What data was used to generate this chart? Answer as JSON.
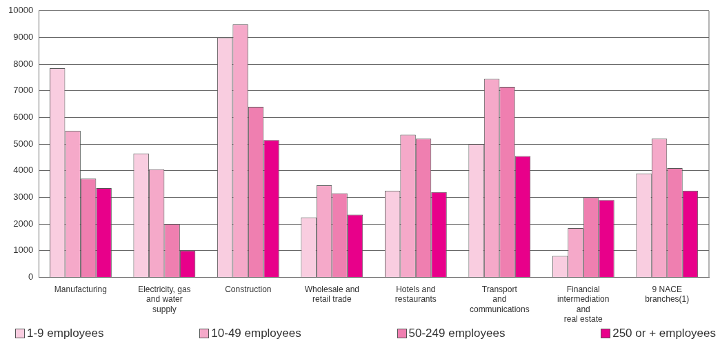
{
  "chart_data": {
    "type": "bar",
    "categories": [
      "Manufacturing",
      "Electricity, gas\nand water\nsupply",
      "Construction",
      "Wholesale and\nretail trade",
      "Hotels and\nrestaurants",
      "Transport\nand\ncommunications",
      "Financial\nintermediation\nand\nreal estate",
      "9 NACE\nbranches(1)"
    ],
    "series": [
      {
        "name": "1-9 employees",
        "color": "#f9cde0",
        "values": [
          7850,
          4650,
          9000,
          2250,
          3250,
          5000,
          800,
          3900
        ]
      },
      {
        "name": "10-49 employees",
        "color": "#f5a9c9",
        "values": [
          5500,
          4050,
          9500,
          3450,
          5350,
          7450,
          1850,
          5200
        ]
      },
      {
        "name": "50-249 employees",
        "color": "#ef7fb0",
        "values": [
          3700,
          2000,
          6400,
          3150,
          5200,
          7150,
          3000,
          4100
        ]
      },
      {
        "name": "250 or + employees",
        "color": "#e8008a",
        "values": [
          3350,
          1000,
          5150,
          2350,
          3200,
          4550,
          2900,
          3250
        ]
      }
    ],
    "ylim": [
      0,
      10000
    ],
    "yticks": [
      0,
      1000,
      2000,
      3000,
      4000,
      5000,
      6000,
      7000,
      8000,
      9000,
      10000
    ],
    "grid": "y",
    "legend": "bottom"
  }
}
